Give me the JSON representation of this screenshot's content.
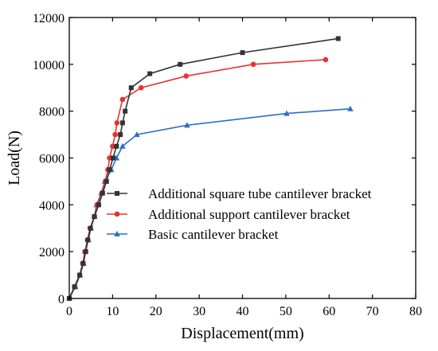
{
  "chart_data": {
    "type": "line",
    "title": "",
    "xlabel": "Displacement(mm)",
    "ylabel": "Load(N)",
    "xlim": [
      0,
      80
    ],
    "ylim": [
      0,
      12000
    ],
    "xticks": [
      0,
      10,
      20,
      30,
      40,
      50,
      60,
      70,
      80
    ],
    "yticks": [
      0,
      2000,
      4000,
      6000,
      8000,
      10000,
      12000
    ],
    "grid": false,
    "legend_position": "center-right",
    "series": [
      {
        "name": "Additional square tube cantilever bracket",
        "color": "#333333",
        "marker": "square",
        "x": [
          0,
          1.2,
          2.4,
          3.2,
          3.8,
          4.3,
          4.9,
          5.8,
          6.8,
          7.7,
          8.6,
          9.3,
          10.1,
          10.9,
          11.8,
          12.3,
          12.9,
          14.3,
          18.6,
          25.6,
          40.0,
          62.1
        ],
        "y": [
          0,
          500,
          1000,
          1500,
          2000,
          2500,
          3000,
          3500,
          4000,
          4500,
          5000,
          5500,
          6000,
          6500,
          7000,
          7500,
          8000,
          9000,
          9600,
          10000,
          10500,
          11100
        ]
      },
      {
        "name": "Additional support cantilever bracket",
        "color": "#e8322f",
        "marker": "circle",
        "x": [
          0,
          1.3,
          2.4,
          3.1,
          3.6,
          4.2,
          4.8,
          5.8,
          6.4,
          7.5,
          8.3,
          8.9,
          9.3,
          10.0,
          10.6,
          11.0,
          12.3,
          16.6,
          27.0,
          42.5,
          59.2
        ],
        "y": [
          0,
          500,
          1000,
          1500,
          2000,
          2500,
          3000,
          3500,
          4000,
          4500,
          5000,
          5500,
          6000,
          6500,
          7000,
          7500,
          8500,
          9000,
          9500,
          10000,
          10200
        ]
      },
      {
        "name": "Basic cantilever bracket",
        "color": "#2d6fc4",
        "marker": "triangle",
        "x": [
          0,
          1.4,
          2.5,
          3.3,
          3.7,
          4.4,
          5.0,
          5.8,
          6.3,
          7.4,
          8.2,
          9.7,
          10.9,
          12.3,
          15.6,
          27.2,
          50.2,
          64.9
        ],
        "y": [
          0,
          500,
          1000,
          1500,
          2000,
          2500,
          3000,
          3500,
          4000,
          4500,
          5000,
          5500,
          6000,
          6500,
          7000,
          7400,
          7900,
          8100
        ]
      }
    ]
  }
}
